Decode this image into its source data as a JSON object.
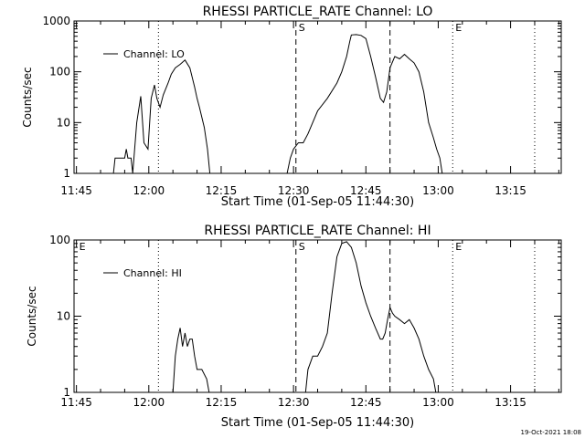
{
  "footer_stamp": "19-Oct-2021 18:08",
  "chart_data": [
    {
      "type": "line",
      "title": "RHESSI PARTICLE_RATE Channel: LO",
      "xlabel": "Start Time (01-Sep-05 11:44:30)",
      "ylabel": "Counts/sec",
      "y_scale": "log",
      "ylim": [
        1,
        1000
      ],
      "xlim": [
        "11:44:30",
        "13:25:30"
      ],
      "x_ticks": [
        "11:45",
        "12:00",
        "12:15",
        "12:30",
        "12:45",
        "13:00",
        "13:15"
      ],
      "y_ticks": [
        "1",
        "10",
        "100",
        "1000"
      ],
      "legend": {
        "position": "top-left",
        "entries": [
          "Channel: LO"
        ]
      },
      "markers": [
        {
          "label": "",
          "time": "12:02:00",
          "style": "dotted"
        },
        {
          "label": "S",
          "time": "12:30:30",
          "style": "dashed"
        },
        {
          "label": "",
          "time": "12:50:00",
          "style": "dashed"
        },
        {
          "label": "E",
          "time": "13:03:00",
          "style": "dotted"
        },
        {
          "label": "",
          "time": "13:20:00",
          "style": "dotted"
        }
      ],
      "series": [
        {
          "name": "Channel: LO",
          "x": [
            "11:52:40",
            "11:53:00",
            "11:54:00",
            "11:55:00",
            "11:55:20",
            "11:55:40",
            "11:56:20",
            "11:56:40",
            "11:57:30",
            "11:58:20",
            "11:59:00",
            "11:59:50",
            "12:00:30",
            "12:01:10",
            "12:01:40",
            "12:02:20",
            "12:03:00",
            "12:04:00",
            "12:04:40",
            "12:05:30",
            "12:06:30",
            "12:07:30",
            "12:08:30",
            "12:09:30",
            "12:10:00",
            "12:10:30",
            "12:11:30",
            "12:12:10",
            "12:12:40",
            "12:28:40",
            "12:29:20",
            "12:30:00",
            "12:31:00",
            "12:32:00",
            "12:33:00",
            "12:35:00",
            "12:37:00",
            "12:39:00",
            "12:40:00",
            "12:41:00",
            "12:41:40",
            "12:42:00",
            "12:43:00",
            "12:44:00",
            "12:45:00",
            "12:46:00",
            "12:47:00",
            "12:48:00",
            "12:48:40",
            "12:49:20",
            "12:50:00",
            "12:51:00",
            "12:52:00",
            "12:53:00",
            "12:54:00",
            "12:55:00",
            "12:56:00",
            "12:57:00",
            "12:58:00",
            "12:59:00",
            "12:59:40",
            "13:00:20",
            "13:00:50"
          ],
          "y": [
            1,
            2,
            2,
            2,
            3,
            2,
            2,
            1,
            10,
            33,
            4,
            3,
            30,
            55,
            30,
            20,
            35,
            60,
            90,
            120,
            140,
            170,
            120,
            50,
            30,
            20,
            8,
            3,
            1,
            1,
            2,
            3,
            4,
            4,
            6,
            17,
            30,
            60,
            100,
            200,
            400,
            530,
            540,
            520,
            450,
            200,
            80,
            30,
            25,
            40,
            120,
            200,
            180,
            220,
            180,
            150,
            100,
            40,
            10,
            5,
            3,
            2,
            1
          ]
        }
      ]
    },
    {
      "type": "line",
      "title": "RHESSI PARTICLE_RATE Channel: HI",
      "xlabel": "Start Time (01-Sep-05 11:44:30)",
      "ylabel": "Counts/sec",
      "y_scale": "log",
      "ylim": [
        1,
        100
      ],
      "xlim": [
        "11:44:30",
        "13:25:30"
      ],
      "x_ticks": [
        "11:45",
        "12:00",
        "12:15",
        "12:30",
        "12:45",
        "13:00",
        "13:15"
      ],
      "y_ticks": [
        "1",
        "10",
        "100"
      ],
      "legend": {
        "position": "top-left",
        "entries": [
          "Channel: HI"
        ]
      },
      "markers": [
        {
          "label": "E",
          "time": "11:45:00",
          "style": "none"
        },
        {
          "label": "",
          "time": "12:02:00",
          "style": "dotted"
        },
        {
          "label": "S",
          "time": "12:30:30",
          "style": "dashed"
        },
        {
          "label": "",
          "time": "12:50:00",
          "style": "dashed"
        },
        {
          "label": "E",
          "time": "13:03:00",
          "style": "dotted"
        },
        {
          "label": "",
          "time": "13:20:00",
          "style": "dotted"
        }
      ],
      "series": [
        {
          "name": "Channel: HI",
          "x": [
            "12:05:00",
            "12:05:30",
            "12:06:00",
            "12:06:30",
            "12:07:00",
            "12:07:30",
            "12:08:00",
            "12:08:30",
            "12:09:00",
            "12:09:30",
            "12:10:00",
            "12:11:00",
            "12:12:00",
            "12:12:30",
            "12:32:30",
            "12:33:00",
            "12:34:00",
            "12:35:00",
            "12:36:00",
            "12:37:00",
            "12:38:00",
            "12:39:00",
            "12:40:00",
            "12:41:00",
            "12:42:00",
            "12:43:00",
            "12:44:00",
            "12:45:00",
            "12:46:00",
            "12:47:00",
            "12:48:00",
            "12:48:30",
            "12:49:00",
            "12:49:30",
            "12:50:00",
            "12:50:30",
            "12:51:00",
            "12:52:00",
            "12:53:00",
            "12:54:00",
            "12:55:00",
            "12:56:00",
            "12:57:00",
            "12:58:00",
            "12:59:00",
            "12:59:30"
          ],
          "y": [
            1,
            3,
            5,
            7,
            4,
            6,
            4,
            5,
            5,
            3,
            2,
            2,
            1.5,
            1,
            1,
            2,
            3,
            3,
            4,
            6,
            20,
            60,
            90,
            95,
            80,
            50,
            25,
            15,
            10,
            7,
            5,
            5,
            6,
            9,
            13,
            11,
            10,
            9,
            8,
            9,
            7,
            5,
            3,
            2,
            1.5,
            1
          ]
        }
      ]
    }
  ]
}
